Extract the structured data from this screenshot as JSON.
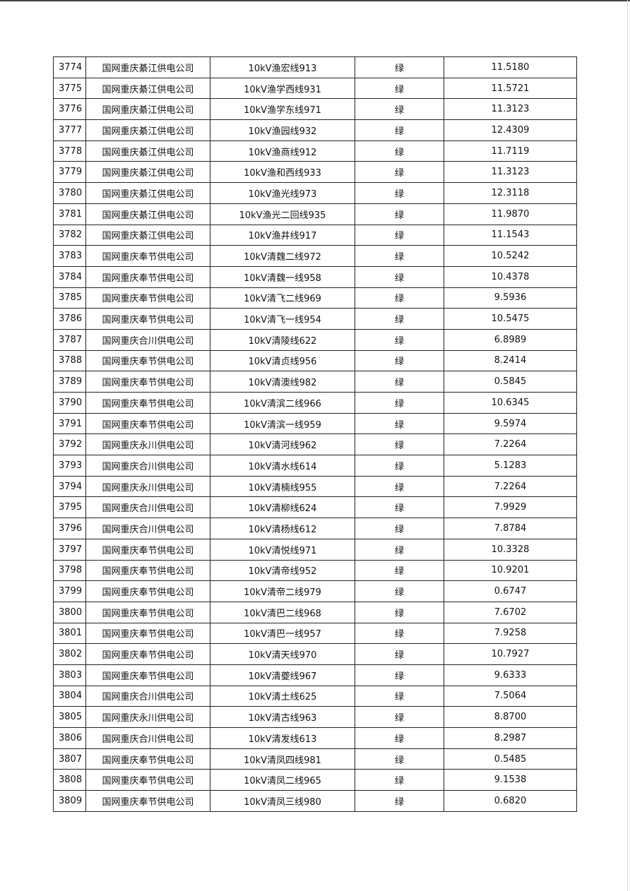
{
  "table": {
    "rows": [
      [
        "3774",
        "国网重庆綦江供电公司",
        "10kV渔宏线913",
        "绿",
        "11.5180"
      ],
      [
        "3775",
        "国网重庆綦江供电公司",
        "10kV渔学西线931",
        "绿",
        "11.5721"
      ],
      [
        "3776",
        "国网重庆綦江供电公司",
        "10kV渔学东线971",
        "绿",
        "11.3123"
      ],
      [
        "3777",
        "国网重庆綦江供电公司",
        "10kV渔园线932",
        "绿",
        "12.4309"
      ],
      [
        "3778",
        "国网重庆綦江供电公司",
        "10kV渔商线912",
        "绿",
        "11.7119"
      ],
      [
        "3779",
        "国网重庆綦江供电公司",
        "10kV渔和西线933",
        "绿",
        "11.3123"
      ],
      [
        "3780",
        "国网重庆綦江供电公司",
        "10kV渔光线973",
        "绿",
        "12.3118"
      ],
      [
        "3781",
        "国网重庆綦江供电公司",
        "10kV渔光二回线935",
        "绿",
        "11.9870"
      ],
      [
        "3782",
        "国网重庆綦江供电公司",
        "10kV渔井线917",
        "绿",
        "11.1543"
      ],
      [
        "3783",
        "国网重庆奉节供电公司",
        "10kV清魏二线972",
        "绿",
        "10.5242"
      ],
      [
        "3784",
        "国网重庆奉节供电公司",
        "10kV清魏一线958",
        "绿",
        "10.4378"
      ],
      [
        "3785",
        "国网重庆奉节供电公司",
        "10kV清飞二线969",
        "绿",
        "9.5936"
      ],
      [
        "3786",
        "国网重庆奉节供电公司",
        "10kV清飞一线954",
        "绿",
        "10.5475"
      ],
      [
        "3787",
        "国网重庆合川供电公司",
        "10kV清陵线622",
        "绿",
        "6.8989"
      ],
      [
        "3788",
        "国网重庆奉节供电公司",
        "10kV清贞线956",
        "绿",
        "8.2414"
      ],
      [
        "3789",
        "国网重庆奉节供电公司",
        "10kV清澳线982",
        "绿",
        "0.5845"
      ],
      [
        "3790",
        "国网重庆奉节供电公司",
        "10kV清滨二线966",
        "绿",
        "10.6345"
      ],
      [
        "3791",
        "国网重庆奉节供电公司",
        "10kV清滨一线959",
        "绿",
        "9.5974"
      ],
      [
        "3792",
        "国网重庆永川供电公司",
        "10kV清河线962",
        "绿",
        "7.2264"
      ],
      [
        "3793",
        "国网重庆合川供电公司",
        "10kV清水线614",
        "绿",
        "5.1283"
      ],
      [
        "3794",
        "国网重庆永川供电公司",
        "10kV清楠线955",
        "绿",
        "7.2264"
      ],
      [
        "3795",
        "国网重庆合川供电公司",
        "10kV清柳线624",
        "绿",
        "7.9929"
      ],
      [
        "3796",
        "国网重庆合川供电公司",
        "10kV清杨线612",
        "绿",
        "7.8784"
      ],
      [
        "3797",
        "国网重庆奉节供电公司",
        "10kV清悦线971",
        "绿",
        "10.3328"
      ],
      [
        "3798",
        "国网重庆奉节供电公司",
        "10kV清帝线952",
        "绿",
        "10.9201"
      ],
      [
        "3799",
        "国网重庆奉节供电公司",
        "10kV清帝二线979",
        "绿",
        "0.6747"
      ],
      [
        "3800",
        "国网重庆奉节供电公司",
        "10kV清巴二线968",
        "绿",
        "7.6702"
      ],
      [
        "3801",
        "国网重庆奉节供电公司",
        "10kV清巴一线957",
        "绿",
        "7.9258"
      ],
      [
        "3802",
        "国网重庆奉节供电公司",
        "10kV清天线970",
        "绿",
        "10.7927"
      ],
      [
        "3803",
        "国网重庆奉节供电公司",
        "10kV清夔线967",
        "绿",
        "9.6333"
      ],
      [
        "3804",
        "国网重庆合川供电公司",
        "10kV清土线625",
        "绿",
        "7.5064"
      ],
      [
        "3805",
        "国网重庆永川供电公司",
        "10kV清古线963",
        "绿",
        "8.8700"
      ],
      [
        "3806",
        "国网重庆合川供电公司",
        "10kV清发线613",
        "绿",
        "8.2987"
      ],
      [
        "3807",
        "国网重庆奉节供电公司",
        "10kV清凤四线981",
        "绿",
        "0.5485"
      ],
      [
        "3808",
        "国网重庆奉节供电公司",
        "10kV清凤二线965",
        "绿",
        "9.1538"
      ],
      [
        "3809",
        "国网重庆奉节供电公司",
        "10kV清凤三线980",
        "绿",
        "0.6820"
      ]
    ]
  }
}
